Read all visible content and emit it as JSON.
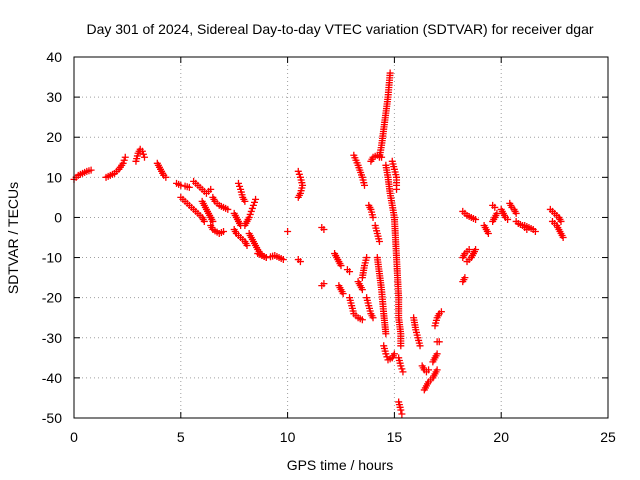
{
  "chart_data": {
    "type": "scatter",
    "title": "Day 301 of 2024, Sidereal Day-to-day VTEC variation (SDTVAR) for receiver dgar",
    "xlabel": "GPS time / hours",
    "ylabel": "SDTVAR / TECUs",
    "xlim": [
      0,
      25
    ],
    "ylim": [
      -50,
      40
    ],
    "xticks": [
      0,
      5,
      10,
      15,
      20,
      25
    ],
    "yticks": [
      -50,
      -40,
      -30,
      -20,
      -10,
      0,
      10,
      20,
      30,
      40
    ],
    "grid": true,
    "marker": "+",
    "marker_color": "#ff0000",
    "segments": [
      [
        [
          0.0,
          9.5
        ],
        [
          0.2,
          10.5
        ],
        [
          0.4,
          11.0
        ],
        [
          0.6,
          11.5
        ],
        [
          0.8,
          11.8
        ]
      ],
      [
        [
          1.5,
          10.0
        ],
        [
          1.7,
          10.5
        ],
        [
          1.9,
          11.0
        ],
        [
          2.1,
          12.0
        ],
        [
          2.3,
          13.5
        ],
        [
          2.4,
          15.0
        ]
      ],
      [
        [
          2.9,
          14.0
        ],
        [
          3.0,
          16.0
        ],
        [
          3.1,
          17.0
        ],
        [
          3.2,
          16.5
        ],
        [
          3.3,
          15.0
        ]
      ],
      [
        [
          3.9,
          13.5
        ],
        [
          4.0,
          12.5
        ],
        [
          4.1,
          11.5
        ],
        [
          4.2,
          10.5
        ],
        [
          4.3,
          10.0
        ]
      ],
      [
        [
          4.8,
          8.5
        ],
        [
          5.0,
          8.0
        ],
        [
          5.2,
          7.8
        ],
        [
          5.4,
          7.5
        ]
      ],
      [
        [
          5.0,
          5.0
        ],
        [
          5.2,
          4.0
        ],
        [
          5.4,
          3.0
        ],
        [
          5.6,
          2.0
        ],
        [
          5.8,
          1.0
        ],
        [
          6.0,
          0.0
        ],
        [
          6.1,
          -1.0
        ]
      ],
      [
        [
          5.6,
          9.0
        ],
        [
          5.8,
          8.0
        ],
        [
          6.0,
          7.0
        ],
        [
          6.2,
          6.0
        ],
        [
          6.4,
          7.0
        ]
      ],
      [
        [
          6.0,
          4.0
        ],
        [
          6.1,
          3.0
        ],
        [
          6.2,
          2.0
        ],
        [
          6.3,
          1.0
        ],
        [
          6.4,
          0.0
        ],
        [
          6.5,
          -1.0
        ]
      ],
      [
        [
          6.4,
          -2.0
        ],
        [
          6.5,
          -3.0
        ],
        [
          6.8,
          -4.0
        ],
        [
          7.0,
          -3.5
        ]
      ],
      [
        [
          6.5,
          5.0
        ],
        [
          6.6,
          4.0
        ],
        [
          6.8,
          3.0
        ],
        [
          7.0,
          2.5
        ],
        [
          7.2,
          2.0
        ]
      ],
      [
        [
          7.5,
          -3.0
        ],
        [
          7.6,
          -4.0
        ],
        [
          7.8,
          -5.0
        ],
        [
          8.0,
          -6.0
        ],
        [
          8.1,
          -7.0
        ]
      ],
      [
        [
          7.5,
          1.0
        ],
        [
          7.6,
          0.0
        ],
        [
          7.7,
          -1.0
        ],
        [
          7.8,
          -2.0
        ]
      ],
      [
        [
          7.7,
          8.5
        ],
        [
          7.8,
          7.0
        ],
        [
          7.9,
          5.0
        ],
        [
          8.0,
          4.0
        ]
      ],
      [
        [
          8.0,
          -2.0
        ],
        [
          8.1,
          -1.0
        ],
        [
          8.2,
          0.0
        ],
        [
          8.3,
          1.5
        ],
        [
          8.4,
          3.0
        ],
        [
          8.5,
          4.5
        ]
      ],
      [
        [
          8.2,
          -4.0
        ],
        [
          8.4,
          -6.0
        ],
        [
          8.6,
          -8.0
        ],
        [
          8.8,
          -9.5
        ],
        [
          9.0,
          -10.0
        ]
      ],
      [
        [
          8.6,
          -9.0
        ],
        [
          8.8,
          -9.5
        ],
        [
          9.0,
          -10.0
        ],
        [
          9.2,
          -9.8
        ],
        [
          9.4,
          -9.5
        ],
        [
          9.6,
          -10.0
        ],
        [
          9.8,
          -10.5
        ]
      ],
      [
        [
          10.0,
          -3.5
        ]
      ],
      [
        [
          10.5,
          11.5
        ],
        [
          10.6,
          10.0
        ],
        [
          10.7,
          8.0
        ],
        [
          10.6,
          6.0
        ],
        [
          10.5,
          5.0
        ]
      ],
      [
        [
          10.5,
          -10.5
        ],
        [
          10.6,
          -11.0
        ]
      ],
      [
        [
          11.6,
          -2.5
        ],
        [
          11.7,
          -3.0
        ]
      ],
      [
        [
          11.6,
          -17.0
        ],
        [
          11.7,
          -16.5
        ]
      ],
      [
        [
          12.2,
          -9.0
        ],
        [
          12.3,
          -10.0
        ],
        [
          12.4,
          -11.0
        ],
        [
          12.5,
          -12.0
        ]
      ],
      [
        [
          12.4,
          -17.0
        ],
        [
          12.5,
          -18.0
        ],
        [
          12.6,
          -19.0
        ]
      ],
      [
        [
          12.8,
          -13.0
        ],
        [
          12.9,
          -13.5
        ]
      ],
      [
        [
          12.9,
          -20.0
        ],
        [
          13.0,
          -22.0
        ],
        [
          13.1,
          -24.0
        ],
        [
          13.3,
          -25.0
        ],
        [
          13.5,
          -25.5
        ]
      ],
      [
        [
          13.1,
          15.5
        ],
        [
          13.3,
          13.0
        ],
        [
          13.5,
          10.0
        ],
        [
          13.6,
          8.0
        ]
      ],
      [
        [
          13.3,
          -16.0
        ],
        [
          13.4,
          -17.0
        ],
        [
          13.5,
          -18.0
        ]
      ],
      [
        [
          13.5,
          -15.0
        ],
        [
          13.6,
          -12.0
        ],
        [
          13.7,
          -10.0
        ]
      ],
      [
        [
          13.7,
          -20.0
        ],
        [
          13.8,
          -22.0
        ],
        [
          13.9,
          -24.0
        ],
        [
          14.0,
          -25.0
        ]
      ],
      [
        [
          13.8,
          3.0
        ],
        [
          13.9,
          2.0
        ],
        [
          14.0,
          0.0
        ]
      ],
      [
        [
          13.9,
          14.0
        ],
        [
          14.0,
          15.0
        ],
        [
          14.2,
          15.5
        ],
        [
          14.4,
          15.0
        ]
      ],
      [
        [
          14.1,
          -2.0
        ],
        [
          14.2,
          -4.0
        ],
        [
          14.3,
          -6.0
        ]
      ],
      [
        [
          14.2,
          -10.0
        ],
        [
          14.3,
          -14.0
        ],
        [
          14.4,
          -18.0
        ],
        [
          14.5,
          -24.0
        ],
        [
          14.6,
          -29.0
        ]
      ],
      [
        [
          14.3,
          15.0
        ],
        [
          14.4,
          18.0
        ],
        [
          14.5,
          22.0
        ],
        [
          14.6,
          26.0
        ],
        [
          14.7,
          30.0
        ],
        [
          14.8,
          36.0
        ]
      ],
      [
        [
          14.5,
          -32.0
        ],
        [
          14.6,
          -34.0
        ],
        [
          14.7,
          -35.5
        ],
        [
          14.9,
          -35.0
        ],
        [
          15.0,
          -34.0
        ]
      ],
      [
        [
          14.6,
          13.0
        ],
        [
          14.7,
          10.0
        ],
        [
          14.8,
          6.0
        ],
        [
          14.9,
          3.0
        ],
        [
          15.0,
          0.0
        ],
        [
          15.05,
          -5.0
        ],
        [
          15.1,
          -10.0
        ],
        [
          15.15,
          -15.0
        ],
        [
          15.2,
          -20.0
        ],
        [
          15.2,
          -25.0
        ],
        [
          15.3,
          -29.0
        ],
        [
          15.3,
          -32.0
        ]
      ],
      [
        [
          14.9,
          14.0
        ],
        [
          15.0,
          12.0
        ],
        [
          15.1,
          10.0
        ],
        [
          15.1,
          8.0
        ],
        [
          15.1,
          7.0
        ]
      ],
      [
        [
          15.2,
          -35.0
        ],
        [
          15.3,
          -37.0
        ],
        [
          15.4,
          -38.5
        ]
      ],
      [
        [
          15.2,
          -46.0
        ],
        [
          15.3,
          -48.0
        ],
        [
          15.35,
          -49.0
        ]
      ],
      [
        [
          15.9,
          -25.0
        ],
        [
          16.0,
          -28.0
        ],
        [
          16.1,
          -30.0
        ],
        [
          16.2,
          -32.0
        ]
      ],
      [
        [
          16.3,
          -37.0
        ],
        [
          16.4,
          -38.0
        ],
        [
          16.5,
          -38.5
        ],
        [
          16.6,
          -38.0
        ]
      ],
      [
        [
          16.4,
          -43.0
        ],
        [
          16.5,
          -42.0
        ],
        [
          16.6,
          -41.0
        ],
        [
          16.8,
          -40.0
        ],
        [
          17.0,
          -38.0
        ]
      ],
      [
        [
          16.8,
          -36.0
        ],
        [
          16.9,
          -35.0
        ],
        [
          17.0,
          -34.0
        ]
      ],
      [
        [
          16.9,
          -27.0
        ],
        [
          17.0,
          -25.0
        ],
        [
          17.1,
          -24.0
        ],
        [
          17.2,
          -23.5
        ]
      ],
      [
        [
          17.0,
          -31.0
        ],
        [
          17.1,
          -31.0
        ]
      ],
      [
        [
          18.2,
          -16.0
        ],
        [
          18.3,
          -15.0
        ]
      ],
      [
        [
          18.2,
          -10.0
        ],
        [
          18.3,
          -9.0
        ],
        [
          18.5,
          -8.0
        ]
      ],
      [
        [
          18.2,
          1.5
        ],
        [
          18.4,
          0.5
        ],
        [
          18.6,
          0.0
        ],
        [
          18.8,
          -0.5
        ]
      ],
      [
        [
          18.4,
          -11.0
        ],
        [
          18.6,
          -10.0
        ],
        [
          18.7,
          -9.0
        ],
        [
          18.8,
          -8.0
        ]
      ],
      [
        [
          19.2,
          -2.0
        ],
        [
          19.3,
          -3.0
        ],
        [
          19.4,
          -4.0
        ]
      ],
      [
        [
          19.6,
          3.0
        ],
        [
          19.7,
          2.5
        ]
      ],
      [
        [
          19.6,
          -1.0
        ],
        [
          19.7,
          0.0
        ],
        [
          19.8,
          1.0
        ]
      ],
      [
        [
          20.0,
          2.0
        ],
        [
          20.1,
          1.0
        ],
        [
          20.2,
          0.0
        ],
        [
          20.3,
          -0.5
        ]
      ],
      [
        [
          20.4,
          3.5
        ],
        [
          20.5,
          2.5
        ],
        [
          20.6,
          2.0
        ],
        [
          20.7,
          1.0
        ]
      ],
      [
        [
          20.7,
          -1.0
        ],
        [
          20.8,
          -1.5
        ],
        [
          21.0,
          -2.0
        ],
        [
          21.2,
          -3.0
        ]
      ],
      [
        [
          21.1,
          -2.0
        ],
        [
          21.3,
          -2.5
        ],
        [
          21.5,
          -3.0
        ],
        [
          21.6,
          -3.5
        ]
      ],
      [
        [
          22.3,
          2.0
        ],
        [
          22.4,
          1.5
        ],
        [
          22.5,
          1.0
        ],
        [
          22.6,
          0.5
        ],
        [
          22.7,
          0.0
        ],
        [
          22.8,
          -1.0
        ]
      ],
      [
        [
          22.4,
          -1.0
        ],
        [
          22.6,
          -2.0
        ],
        [
          22.7,
          -3.0
        ],
        [
          22.8,
          -4.0
        ],
        [
          22.9,
          -5.0
        ]
      ]
    ]
  }
}
